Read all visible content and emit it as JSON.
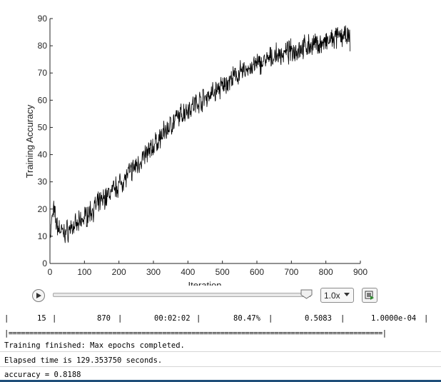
{
  "chart_data": {
    "type": "line",
    "xlabel": "Iteration",
    "ylabel": "Training Accuracy",
    "xlim": [
      0,
      900
    ],
    "ylim": [
      0,
      90
    ],
    "xticks": [
      0,
      100,
      200,
      300,
      400,
      500,
      600,
      700,
      800,
      900
    ],
    "yticks": [
      0,
      10,
      20,
      30,
      40,
      50,
      60,
      70,
      80,
      90
    ],
    "x_range": [
      1,
      870
    ],
    "series": [
      {
        "color": "#000000",
        "anchor_points": [
          [
            1,
            11
          ],
          [
            10,
            20
          ],
          [
            20,
            14
          ],
          [
            40,
            11
          ],
          [
            60,
            13
          ],
          [
            80,
            14
          ],
          [
            100,
            17
          ],
          [
            150,
            23
          ],
          [
            200,
            29
          ],
          [
            250,
            36
          ],
          [
            300,
            43
          ],
          [
            350,
            51
          ],
          [
            400,
            57
          ],
          [
            450,
            61
          ],
          [
            500,
            65
          ],
          [
            550,
            70
          ],
          [
            600,
            73
          ],
          [
            650,
            76
          ],
          [
            700,
            78
          ],
          [
            750,
            80
          ],
          [
            800,
            81
          ],
          [
            850,
            84
          ],
          [
            870,
            82
          ]
        ],
        "noise_amplitude": 5
      }
    ]
  },
  "controls": {
    "speed": "1.0x"
  },
  "console": {
    "table": {
      "epoch": "15",
      "iteration": "870",
      "time": "00:02:02",
      "accuracy": "80.47%",
      "loss": "0.5083",
      "learn_rate": "1.0000e-04"
    },
    "separator": "|==========================================================================================|",
    "finished": "Training finished: Max epochs completed.",
    "elapsed": "Elapsed time is 129.353750 seconds.",
    "accuracy_result": "accuracy = 0.8188"
  }
}
